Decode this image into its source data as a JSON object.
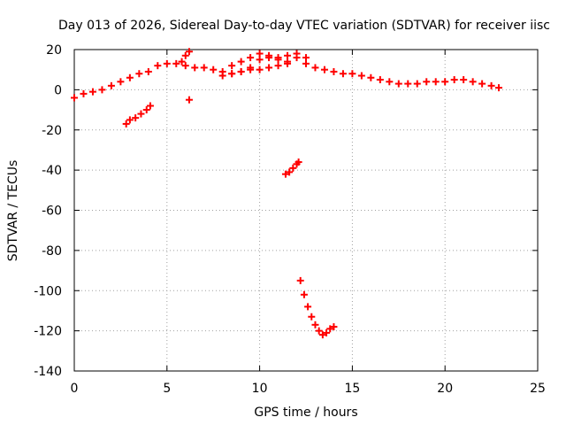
{
  "chart_data": {
    "type": "scatter",
    "title": "Day 013 of 2026, Sidereal Day-to-day VTEC variation (SDTVAR) for receiver iisc",
    "xlabel": "GPS time / hours",
    "ylabel": "SDTVAR / TECUs",
    "xlim": [
      0,
      25
    ],
    "ylim": [
      -140,
      20
    ],
    "xticks": [
      "0",
      "5",
      "10",
      "15",
      "20",
      "25"
    ],
    "yticks": [
      "20",
      "0",
      "-20",
      "-40",
      "-60",
      "-80",
      "-100",
      "-120",
      "-140"
    ],
    "grid": true,
    "marker_color": "#ff0000",
    "series": [
      {
        "name": "main",
        "x": [
          0.0,
          0.5,
          1.0,
          1.5,
          2.0,
          2.5,
          3.0,
          3.5,
          4.0,
          4.5,
          5.0,
          5.5,
          6.0,
          6.5,
          7.0,
          7.5,
          8.0,
          8.5,
          9.0,
          9.5,
          10.0,
          10.5,
          11.0,
          11.5,
          12.0,
          12.5,
          13.0,
          13.5,
          14.0,
          14.5,
          15.0,
          15.5,
          16.0,
          16.5,
          17.0,
          17.5,
          18.0,
          18.5,
          19.0,
          19.5,
          20.0,
          20.5,
          21.0,
          21.5,
          22.0,
          22.5,
          22.9
        ],
        "y": [
          -4,
          -2,
          -1,
          0,
          2,
          4,
          6,
          8,
          9,
          12,
          13,
          13,
          12,
          11,
          11,
          10,
          9,
          8,
          9,
          11,
          15,
          16,
          15,
          14,
          16,
          13,
          11,
          10,
          9,
          8,
          8,
          7,
          6,
          5,
          4,
          3,
          3,
          3,
          4,
          4,
          4,
          5,
          5,
          4,
          3,
          2,
          1
        ]
      },
      {
        "name": "upper-arc",
        "x": [
          8.5,
          9.0,
          9.5,
          10.0,
          10.5,
          11.0,
          11.5,
          12.0,
          12.5
        ],
        "y": [
          12,
          14,
          16,
          18,
          17,
          16,
          17,
          18,
          16
        ]
      },
      {
        "name": "lower-band",
        "x": [
          8.0,
          8.5,
          9.0,
          9.5,
          10.0,
          10.5,
          11.0,
          11.5
        ],
        "y": [
          7,
          8,
          9,
          10,
          10,
          11,
          12,
          13
        ]
      },
      {
        "name": "spike-6h",
        "x": [
          5.8,
          6.0,
          6.2
        ],
        "y": [
          14,
          17,
          19
        ]
      },
      {
        "name": "early-dip",
        "x": [
          2.8,
          3.0,
          3.3,
          3.6,
          3.9,
          4.1
        ],
        "y": [
          -17,
          -15,
          -14,
          -12,
          -10,
          -8
        ]
      },
      {
        "name": "single-point",
        "x": [
          6.2
        ],
        "y": [
          -5
        ]
      },
      {
        "name": "mid-dip",
        "x": [
          11.4,
          11.6,
          11.8,
          12.0,
          12.1
        ],
        "y": [
          -42,
          -41,
          -39,
          -37,
          -36
        ]
      },
      {
        "name": "deep-dip",
        "x": [
          12.2,
          12.4,
          12.6,
          12.8,
          13.0,
          13.2,
          13.4,
          13.6,
          13.8,
          14.0
        ],
        "y": [
          -95,
          -102,
          -108,
          -113,
          -117,
          -120,
          -122,
          -121,
          -119,
          -118
        ]
      }
    ]
  }
}
